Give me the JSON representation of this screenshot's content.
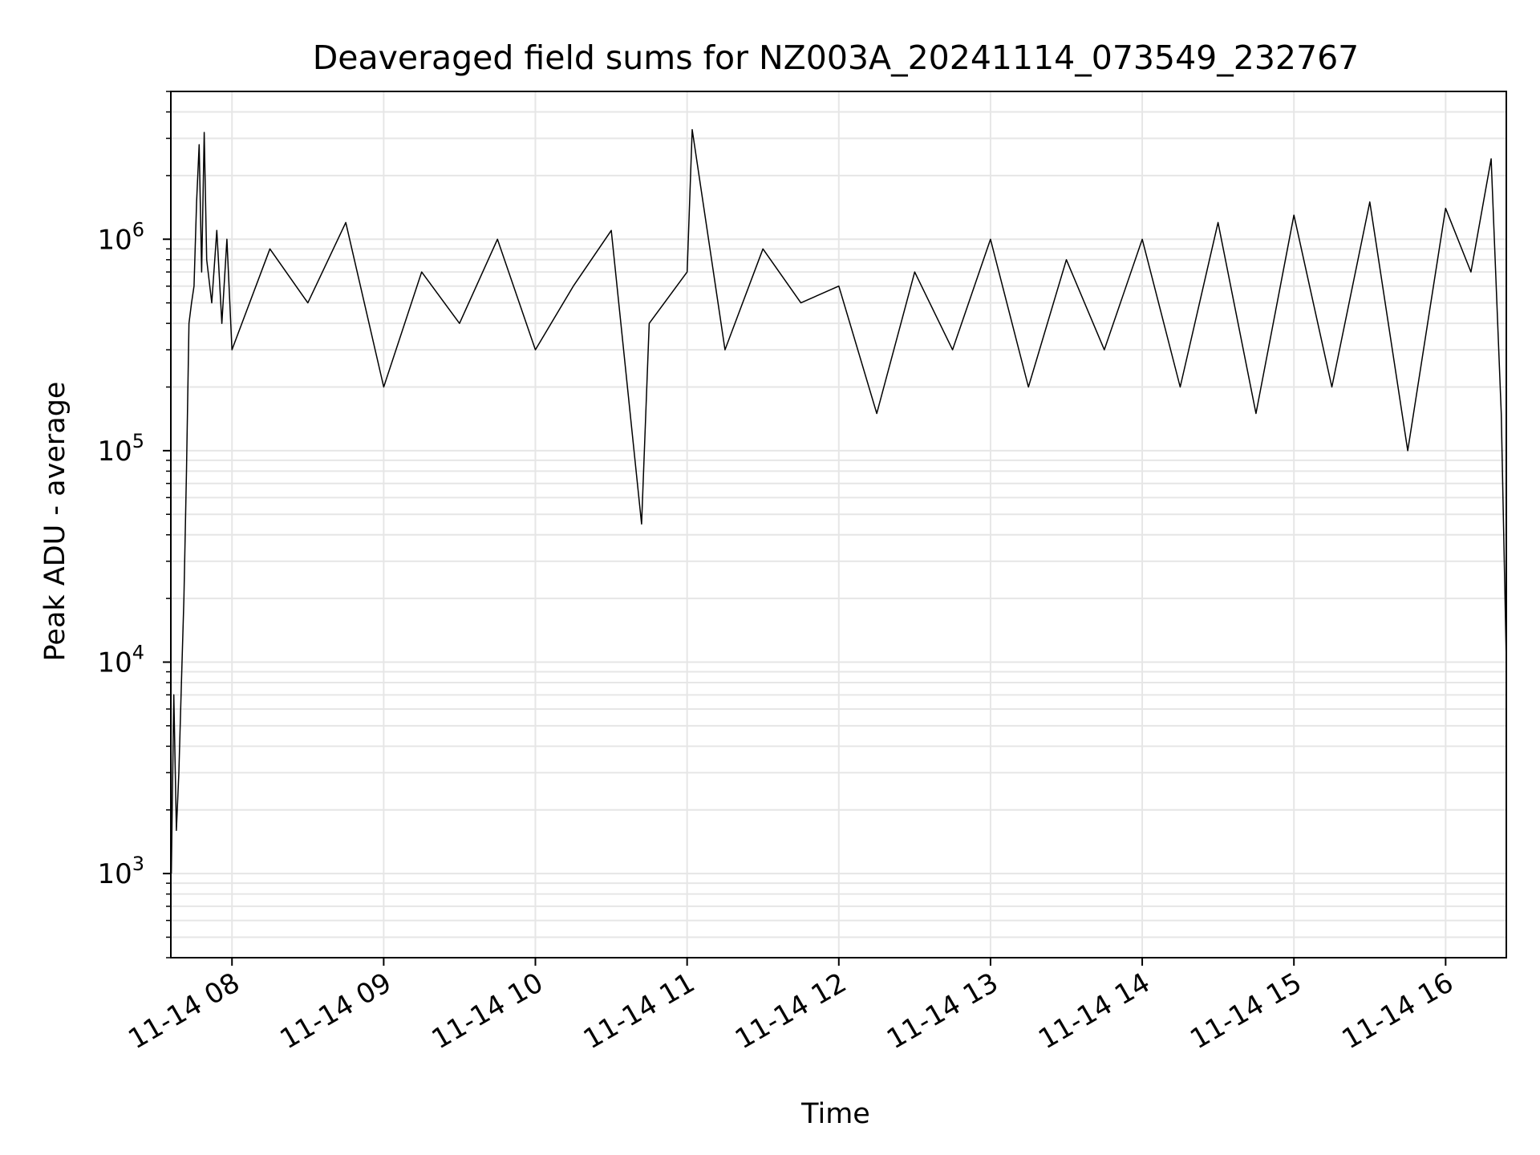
{
  "chart_data": {
    "type": "line",
    "title": "Deaveraged field sums for NZ003A_20241114_073549_232767",
    "xlabel": "Time",
    "ylabel": "Peak ADU - average",
    "y_scale": "log",
    "xlim": [
      "2024-11-14 07:35:49",
      "2024-11-14 16:24:00"
    ],
    "ylim": [
      400,
      5000000
    ],
    "x_tick_labels": [
      "11-14 08",
      "11-14 09",
      "11-14 10",
      "11-14 11",
      "11-14 12",
      "11-14 13",
      "11-14 14",
      "11-14 15",
      "11-14 16"
    ],
    "y_ticks": [
      {
        "base": "10",
        "exp": "3",
        "value": 1000
      },
      {
        "base": "10",
        "exp": "4",
        "value": 10000
      },
      {
        "base": "10",
        "exp": "5",
        "value": 100000
      },
      {
        "base": "10",
        "exp": "6",
        "value": 1000000
      }
    ],
    "grid": true,
    "line_color": "#000000",
    "series": [
      {
        "x": [
          "2024-11-14 07:36",
          "2024-11-14 07:37",
          "2024-11-14 07:38",
          "2024-11-14 07:39",
          "2024-11-14 07:40",
          "2024-11-14 07:41",
          "2024-11-14 07:42",
          "2024-11-14 07:43",
          "2024-11-14 07:44",
          "2024-11-14 07:45",
          "2024-11-14 07:46",
          "2024-11-14 07:47",
          "2024-11-14 07:48",
          "2024-11-14 07:49",
          "2024-11-14 07:50",
          "2024-11-14 07:52",
          "2024-11-14 07:54",
          "2024-11-14 07:56",
          "2024-11-14 07:58",
          "2024-11-14 08:00",
          "2024-11-14 08:15",
          "2024-11-14 08:30",
          "2024-11-14 08:45",
          "2024-11-14 09:00",
          "2024-11-14 09:15",
          "2024-11-14 09:30",
          "2024-11-14 09:45",
          "2024-11-14 10:00",
          "2024-11-14 10:15",
          "2024-11-14 10:30",
          "2024-11-14 10:42",
          "2024-11-14 10:45",
          "2024-11-14 11:00",
          "2024-11-14 11:02",
          "2024-11-14 11:15",
          "2024-11-14 11:30",
          "2024-11-14 11:45",
          "2024-11-14 12:00",
          "2024-11-14 12:15",
          "2024-11-14 12:30",
          "2024-11-14 12:45",
          "2024-11-14 13:00",
          "2024-11-14 13:15",
          "2024-11-14 13:30",
          "2024-11-14 13:45",
          "2024-11-14 14:00",
          "2024-11-14 14:15",
          "2024-11-14 14:30",
          "2024-11-14 14:45",
          "2024-11-14 15:00",
          "2024-11-14 15:15",
          "2024-11-14 15:30",
          "2024-11-14 15:45",
          "2024-11-14 16:00",
          "2024-11-14 16:10",
          "2024-11-14 16:18",
          "2024-11-14 16:22",
          "2024-11-14 16:24"
        ],
        "y": [
          1000,
          7000,
          1600,
          3000,
          8000,
          20000,
          80000,
          400000,
          500000,
          600000,
          1500000,
          2800000,
          700000,
          3200000,
          800000,
          500000,
          1100000,
          400000,
          1000000,
          300000,
          900000,
          500000,
          1200000,
          200000,
          700000,
          400000,
          1000000,
          300000,
          600000,
          1100000,
          45000,
          400000,
          700000,
          3300000,
          300000,
          900000,
          500000,
          600000,
          150000,
          700000,
          300000,
          1000000,
          200000,
          800000,
          300000,
          1000000,
          200000,
          1200000,
          150000,
          1300000,
          200000,
          1500000,
          100000,
          1400000,
          700000,
          2400000,
          150000,
          10000
        ]
      }
    ]
  }
}
